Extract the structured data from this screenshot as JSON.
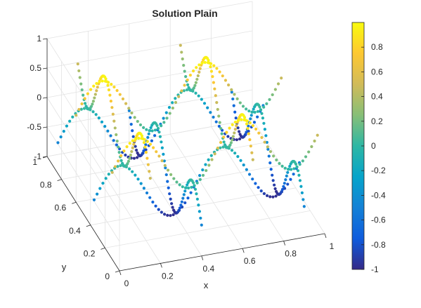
{
  "chart_data": {
    "type": "scatter3d",
    "title": "Solution Plain",
    "xlabel": "x",
    "ylabel": "y",
    "zlabel": "",
    "xlim": [
      0,
      1
    ],
    "ylim": [
      0,
      1
    ],
    "zlim": [
      -1,
      1
    ],
    "xticks": [
      "0",
      "0.2",
      "0.4",
      "0.6",
      "0.8",
      "1"
    ],
    "yticks": [
      "0",
      "0.2",
      "0.4",
      "0.6",
      "0.8",
      "1"
    ],
    "zticks": [
      "-1",
      "-0.5",
      "0",
      "0.5",
      "1"
    ],
    "grid": true,
    "colormap": "parula",
    "colorbar": {
      "limits": [
        -1,
        1
      ],
      "ticks": [
        "-1",
        "-0.8",
        "-0.6",
        "-0.4",
        "-0.2",
        "0",
        "0.2",
        "0.4",
        "0.6",
        "0.8"
      ]
    },
    "surface_function": "sin(2*pi*(x+y)) * cos(2*pi*(x-y))",
    "trajectory_lines": {
      "along_x_at_y": [
        0.1,
        0.35,
        0.6,
        0.85
      ],
      "along_y_at_x": [
        0.15,
        0.4,
        0.65,
        0.9
      ]
    }
  }
}
